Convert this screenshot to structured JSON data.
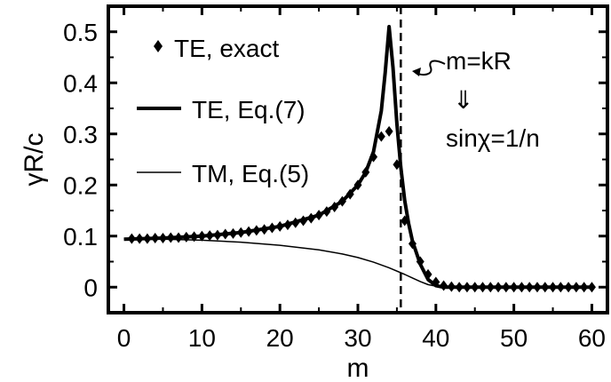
{
  "chart_data": {
    "type": "line",
    "xlabel": "m",
    "ylabel": "γR/c",
    "xlim": [
      -2,
      62
    ],
    "ylim": [
      -0.05,
      0.55
    ],
    "xticks": [
      0,
      10,
      20,
      30,
      40,
      50,
      60
    ],
    "yticks": [
      0,
      0.1,
      0.2,
      0.3,
      0.4,
      0.5
    ],
    "xtick_labels": [
      "0",
      "10",
      "20",
      "30",
      "40",
      "50",
      "60"
    ],
    "ytick_labels": [
      "0",
      "0.1",
      "0.2",
      "0.3",
      "0.4",
      "0.5"
    ],
    "grid": false,
    "legend_position": "top-left",
    "series": [
      {
        "name": "TE, exact",
        "style": "diamond-markers",
        "x": [
          1,
          2,
          3,
          4,
          5,
          6,
          7,
          8,
          9,
          10,
          11,
          12,
          13,
          14,
          15,
          16,
          17,
          18,
          19,
          20,
          21,
          22,
          23,
          24,
          25,
          26,
          27,
          28,
          29,
          30,
          31,
          32,
          33,
          34,
          35,
          36,
          37,
          38,
          39,
          40,
          41,
          42,
          43,
          44,
          45,
          46,
          47,
          48,
          49,
          50,
          51,
          52,
          53,
          54,
          55,
          56,
          57,
          58,
          59,
          60
        ],
        "y": [
          0.095,
          0.095,
          0.095,
          0.096,
          0.096,
          0.097,
          0.097,
          0.098,
          0.099,
          0.1,
          0.101,
          0.102,
          0.104,
          0.105,
          0.107,
          0.109,
          0.111,
          0.113,
          0.116,
          0.119,
          0.122,
          0.126,
          0.13,
          0.135,
          0.141,
          0.148,
          0.157,
          0.168,
          0.182,
          0.2,
          0.225,
          0.255,
          0.295,
          0.305,
          0.24,
          0.13,
          0.085,
          0.05,
          0.025,
          0.01,
          0.003,
          0.001,
          0.0,
          0.0,
          0.0,
          0.0,
          0.0,
          0.0,
          0.0,
          0.0,
          0.0,
          0.0,
          0.0,
          0.0,
          0.0,
          0.0,
          0.0,
          0.0,
          0.0,
          0.0
        ]
      },
      {
        "name": "TE, Eq.(7)",
        "style": "thick-line",
        "x": [
          0,
          5,
          10,
          15,
          20,
          25,
          28,
          30,
          31,
          32,
          33,
          33.5,
          34,
          34.5,
          35,
          35.5,
          36,
          36.5,
          37,
          38,
          39,
          40,
          41,
          42,
          45,
          50,
          55,
          60
        ],
        "y": [
          0.094,
          0.096,
          0.1,
          0.107,
          0.119,
          0.141,
          0.168,
          0.2,
          0.225,
          0.265,
          0.345,
          0.42,
          0.51,
          0.43,
          0.32,
          0.235,
          0.17,
          0.125,
          0.09,
          0.045,
          0.015,
          0.003,
          0.0,
          0.0,
          0.0,
          0.0,
          0.0,
          0.0
        ]
      },
      {
        "name": "TM, Eq.(5)",
        "style": "thin-line",
        "x": [
          0,
          5,
          10,
          15,
          20,
          25,
          28,
          30,
          32,
          34,
          36,
          37,
          38,
          39,
          40,
          41,
          42,
          45,
          50,
          55,
          60
        ],
        "y": [
          0.095,
          0.094,
          0.092,
          0.088,
          0.082,
          0.073,
          0.065,
          0.058,
          0.049,
          0.038,
          0.025,
          0.018,
          0.011,
          0.005,
          0.002,
          0.0,
          0.0,
          0.0,
          0.0,
          0.0,
          0.0
        ]
      }
    ],
    "vline": {
      "x": 35.5,
      "style": "dashed"
    },
    "annotations": {
      "line1": "m=kR",
      "arrow": "⇓",
      "line2": "sinχ=1/n"
    }
  }
}
